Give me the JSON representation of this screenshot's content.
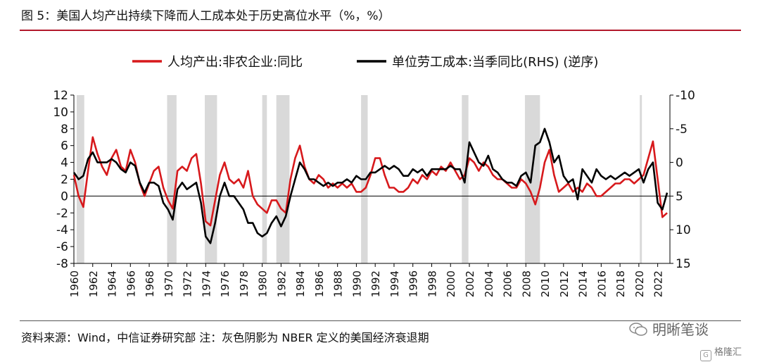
{
  "header": {
    "title": "图 5：美国人均产出持续下降而人工成本处于历史高位水平（%，%）"
  },
  "footer": {
    "source": "资料来源：Wind，中信证券研究部  注：灰色阴影为 NBER 定义的美国经济衰退期",
    "watermark": "明晰笔谈",
    "brand": "格隆汇"
  },
  "colors": {
    "series1": "#d7191c",
    "series2": "#000000",
    "recession": "#d9d9d9",
    "rule": "#b2182b"
  },
  "chart_data": {
    "type": "line",
    "legend_position": "top",
    "x_ticks": [
      "1960",
      "1962",
      "1964",
      "1966",
      "1968",
      "1970",
      "1972",
      "1974",
      "1976",
      "1978",
      "1980",
      "1982",
      "1984",
      "1986",
      "1988",
      "1990",
      "1992",
      "1994",
      "1996",
      "1998",
      "2000",
      "2002",
      "2004",
      "2006",
      "2008",
      "2010",
      "2012",
      "2014",
      "2016",
      "2018",
      "2020",
      "2022"
    ],
    "xlim": [
      1960,
      2023.3
    ],
    "y_left": {
      "ticks": [
        "12",
        "10",
        "8",
        "6",
        "4",
        "2",
        "0",
        "-2",
        "-4",
        "-6",
        "-8"
      ],
      "lim": [
        -8,
        12
      ]
    },
    "y_right": {
      "ticks": [
        "-10",
        "-5",
        "0",
        "5",
        "10",
        "15"
      ],
      "lim": [
        -10,
        15
      ],
      "inverted": true
    },
    "recessions": [
      [
        1960.3,
        1961.1
      ],
      [
        1969.9,
        1970.9
      ],
      [
        1973.9,
        1975.2
      ],
      [
        1980.0,
        1980.5
      ],
      [
        1981.5,
        1982.9
      ],
      [
        1990.5,
        1991.2
      ],
      [
        2001.2,
        2001.9
      ],
      [
        2007.9,
        2009.5
      ],
      [
        2020.1,
        2020.3
      ]
    ],
    "series": [
      {
        "name": "人均产出:非农企业:同比",
        "axis": "left",
        "points": [
          [
            1960,
            2.5
          ],
          [
            1960.5,
            0
          ],
          [
            1961,
            -1.3
          ],
          [
            1961.5,
            3
          ],
          [
            1962,
            7
          ],
          [
            1962.5,
            5
          ],
          [
            1963,
            3.5
          ],
          [
            1963.5,
            2.5
          ],
          [
            1964,
            4.5
          ],
          [
            1964.5,
            5.5
          ],
          [
            1965,
            3.5
          ],
          [
            1965.5,
            3
          ],
          [
            1966,
            5.5
          ],
          [
            1966.5,
            4
          ],
          [
            1967,
            1.5
          ],
          [
            1967.5,
            0
          ],
          [
            1968,
            1.5
          ],
          [
            1968.5,
            3
          ],
          [
            1969,
            3.5
          ],
          [
            1969.5,
            1
          ],
          [
            1970,
            -0.5
          ],
          [
            1970.5,
            -1.5
          ],
          [
            1971,
            3
          ],
          [
            1971.5,
            3.5
          ],
          [
            1972,
            3
          ],
          [
            1972.5,
            4.5
          ],
          [
            1973,
            5
          ],
          [
            1973.5,
            1.5
          ],
          [
            1974,
            -3
          ],
          [
            1974.5,
            -3.5
          ],
          [
            1975,
            -0.5
          ],
          [
            1975.5,
            2.5
          ],
          [
            1976,
            4
          ],
          [
            1976.5,
            2
          ],
          [
            1977,
            1.5
          ],
          [
            1977.5,
            2
          ],
          [
            1978,
            1
          ],
          [
            1978.5,
            3
          ],
          [
            1979,
            0
          ],
          [
            1979.5,
            -1
          ],
          [
            1980,
            -1.5
          ],
          [
            1980.5,
            -2
          ],
          [
            1981,
            -0.5
          ],
          [
            1981.5,
            -0.5
          ],
          [
            1982,
            -1.5
          ],
          [
            1982.5,
            -2
          ],
          [
            1983,
            2
          ],
          [
            1983.5,
            4.5
          ],
          [
            1984,
            6
          ],
          [
            1984.5,
            3.5
          ],
          [
            1985,
            2
          ],
          [
            1985.5,
            1.5
          ],
          [
            1986,
            2.5
          ],
          [
            1986.5,
            2
          ],
          [
            1987,
            1
          ],
          [
            1987.5,
            1.5
          ],
          [
            1988,
            1
          ],
          [
            1988.5,
            1.5
          ],
          [
            1989,
            1
          ],
          [
            1989.5,
            1.5
          ],
          [
            1990,
            0.5
          ],
          [
            1990.5,
            0.5
          ],
          [
            1991,
            1
          ],
          [
            1991.5,
            2.5
          ],
          [
            1992,
            4.5
          ],
          [
            1992.5,
            4.5
          ],
          [
            1993,
            2.5
          ],
          [
            1993.5,
            1
          ],
          [
            1994,
            1
          ],
          [
            1994.5,
            0.5
          ],
          [
            1995,
            0.5
          ],
          [
            1995.5,
            1
          ],
          [
            1996,
            2
          ],
          [
            1996.5,
            1.5
          ],
          [
            1997,
            2.5
          ],
          [
            1997.5,
            2
          ],
          [
            1998,
            3
          ],
          [
            1998.5,
            2.5
          ],
          [
            1999,
            3.5
          ],
          [
            1999.5,
            3
          ],
          [
            2000,
            4
          ],
          [
            2000.5,
            3
          ],
          [
            2001,
            2
          ],
          [
            2001.5,
            2.5
          ],
          [
            2002,
            4.5
          ],
          [
            2002.5,
            4
          ],
          [
            2003,
            3
          ],
          [
            2003.5,
            4
          ],
          [
            2004,
            3.5
          ],
          [
            2004.5,
            2.5
          ],
          [
            2005,
            2
          ],
          [
            2005.5,
            2
          ],
          [
            2006,
            1.5
          ],
          [
            2006.5,
            1
          ],
          [
            2007,
            1
          ],
          [
            2007.5,
            2
          ],
          [
            2008,
            1.5
          ],
          [
            2008.5,
            0.5
          ],
          [
            2009,
            -1
          ],
          [
            2009.5,
            1
          ],
          [
            2010,
            4
          ],
          [
            2010.5,
            5.5
          ],
          [
            2011,
            2.5
          ],
          [
            2011.5,
            0.5
          ],
          [
            2012,
            1
          ],
          [
            2012.5,
            1.5
          ],
          [
            2013,
            0.5
          ],
          [
            2013.5,
            1
          ],
          [
            2014,
            0.5
          ],
          [
            2014.5,
            1.5
          ],
          [
            2015,
            1
          ],
          [
            2015.5,
            0
          ],
          [
            2016,
            0
          ],
          [
            2016.5,
            0.5
          ],
          [
            2017,
            1
          ],
          [
            2017.5,
            1.5
          ],
          [
            2018,
            1.5
          ],
          [
            2018.5,
            2
          ],
          [
            2019,
            2
          ],
          [
            2019.5,
            1.5
          ],
          [
            2020,
            2
          ],
          [
            2020.5,
            2.5
          ],
          [
            2021,
            4.5
          ],
          [
            2021.5,
            6.5
          ],
          [
            2022,
            2
          ],
          [
            2022.5,
            -2.5
          ],
          [
            2023,
            -2
          ]
        ]
      },
      {
        "name": "单位劳工成本:当季同比(RHS) (逆序)",
        "axis": "right",
        "points": [
          [
            1960,
            1.5
          ],
          [
            1960.5,
            2.5
          ],
          [
            1961,
            2
          ],
          [
            1961.5,
            -0.5
          ],
          [
            1962,
            -1.5
          ],
          [
            1962.5,
            0
          ],
          [
            1963,
            0
          ],
          [
            1963.5,
            0
          ],
          [
            1964,
            -0.5
          ],
          [
            1964.5,
            0
          ],
          [
            1965,
            1
          ],
          [
            1965.5,
            1.5
          ],
          [
            1966,
            0
          ],
          [
            1966.5,
            0.5
          ],
          [
            1967,
            3
          ],
          [
            1967.5,
            4.5
          ],
          [
            1968,
            3
          ],
          [
            1968.5,
            3
          ],
          [
            1969,
            3.5
          ],
          [
            1969.5,
            6
          ],
          [
            1970,
            7
          ],
          [
            1970.5,
            8.5
          ],
          [
            1971,
            4
          ],
          [
            1971.5,
            3
          ],
          [
            1972,
            4
          ],
          [
            1972.5,
            3.5
          ],
          [
            1973,
            3
          ],
          [
            1973.5,
            6
          ],
          [
            1974,
            11
          ],
          [
            1974.5,
            12
          ],
          [
            1975,
            9
          ],
          [
            1975.5,
            5
          ],
          [
            1976,
            3
          ],
          [
            1976.5,
            5
          ],
          [
            1977,
            5
          ],
          [
            1977.5,
            6
          ],
          [
            1978,
            7
          ],
          [
            1978.5,
            9
          ],
          [
            1979,
            9
          ],
          [
            1979.5,
            10.5
          ],
          [
            1980,
            11
          ],
          [
            1980.5,
            10.5
          ],
          [
            1981,
            9
          ],
          [
            1981.5,
            8
          ],
          [
            1982,
            9.5
          ],
          [
            1982.5,
            8
          ],
          [
            1983,
            5
          ],
          [
            1983.5,
            2.5
          ],
          [
            1984,
            0
          ],
          [
            1984.5,
            1
          ],
          [
            1985,
            2.5
          ],
          [
            1985.5,
            2.5
          ],
          [
            1986,
            3
          ],
          [
            1986.5,
            3.5
          ],
          [
            1987,
            3
          ],
          [
            1987.5,
            3.5
          ],
          [
            1988,
            3
          ],
          [
            1988.5,
            3
          ],
          [
            1989,
            2.5
          ],
          [
            1989.5,
            3
          ],
          [
            1990,
            2
          ],
          [
            1990.5,
            2.5
          ],
          [
            1991,
            2.5
          ],
          [
            1991.5,
            1.5
          ],
          [
            1992,
            1.5
          ],
          [
            1992.5,
            1
          ],
          [
            1993,
            0.5
          ],
          [
            1993.5,
            1
          ],
          [
            1994,
            0.5
          ],
          [
            1994.5,
            1
          ],
          [
            1995,
            2
          ],
          [
            1995.5,
            2
          ],
          [
            1996,
            1
          ],
          [
            1996.5,
            1.5
          ],
          [
            1997,
            1
          ],
          [
            1997.5,
            2
          ],
          [
            1998,
            1
          ],
          [
            1998.5,
            1
          ],
          [
            1999,
            1
          ],
          [
            1999.5,
            1
          ],
          [
            2000,
            0.5
          ],
          [
            2000.5,
            1
          ],
          [
            2001,
            1
          ],
          [
            2001.5,
            3
          ],
          [
            2002,
            -3
          ],
          [
            2002.5,
            -1.5
          ],
          [
            2003,
            0
          ],
          [
            2003.5,
            0.5
          ],
          [
            2004,
            -1
          ],
          [
            2004.5,
            1
          ],
          [
            2005,
            1.5
          ],
          [
            2005.5,
            2.5
          ],
          [
            2006,
            3
          ],
          [
            2006.5,
            3
          ],
          [
            2007,
            3.5
          ],
          [
            2007.5,
            2
          ],
          [
            2008,
            1.5
          ],
          [
            2008.5,
            3
          ],
          [
            2009,
            -2.5
          ],
          [
            2009.5,
            -3
          ],
          [
            2010,
            -5
          ],
          [
            2010.5,
            -3
          ],
          [
            2011,
            0
          ],
          [
            2011.5,
            -1
          ],
          [
            2012,
            2
          ],
          [
            2012.5,
            3
          ],
          [
            2013,
            2.5
          ],
          [
            2013.5,
            5.5
          ],
          [
            2014,
            1
          ],
          [
            2014.5,
            2
          ],
          [
            2015,
            3
          ],
          [
            2015.5,
            1
          ],
          [
            2016,
            2
          ],
          [
            2016.5,
            2.5
          ],
          [
            2017,
            2
          ],
          [
            2017.5,
            2.5
          ],
          [
            2018,
            2
          ],
          [
            2018.5,
            1.5
          ],
          [
            2019,
            2
          ],
          [
            2019.5,
            1.5
          ],
          [
            2020,
            1
          ],
          [
            2020.5,
            3
          ],
          [
            2021,
            1
          ],
          [
            2021.5,
            0
          ],
          [
            2022,
            6
          ],
          [
            2022.5,
            7
          ],
          [
            2023,
            4.5
          ]
        ]
      }
    ]
  }
}
